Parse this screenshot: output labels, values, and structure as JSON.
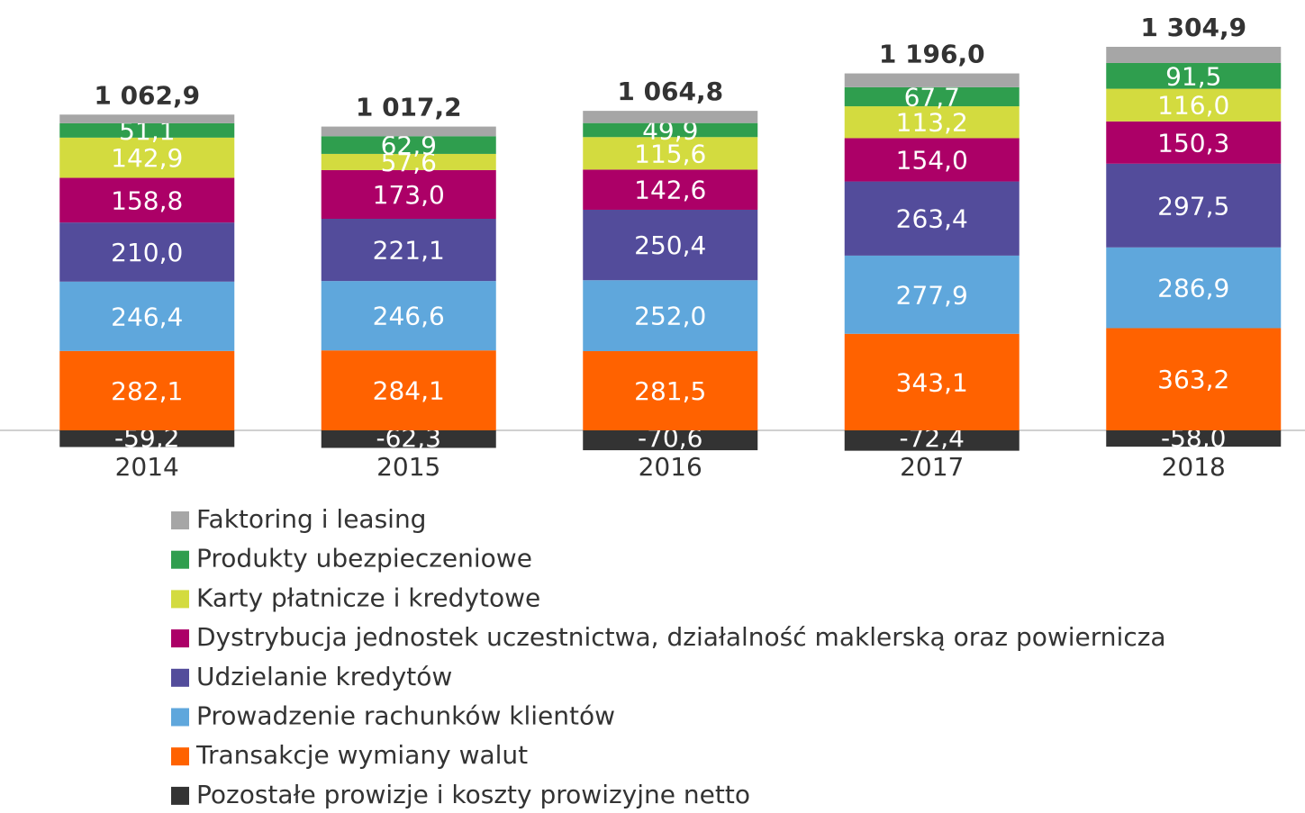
{
  "chart_data": {
    "type": "stacked-bar",
    "categories": [
      "2014",
      "2015",
      "2016",
      "2017",
      "2018"
    ],
    "series": [
      {
        "name": "Pozostałe prowizje i koszty prowizyjne netto",
        "color": "#333333",
        "values": [
          -59.2,
          -62.3,
          -70.6,
          -72.4,
          -58.0
        ],
        "value_labels": [
          "-59,2",
          "-62,3",
          "-70,6",
          "-72,4",
          "-58,0"
        ]
      },
      {
        "name": "Transakcje wymiany walut",
        "color": "#ff6200",
        "values": [
          282.1,
          284.1,
          281.5,
          343.1,
          363.2
        ],
        "value_labels": [
          "282,1",
          "284,1",
          "281,5",
          "343,1",
          "363,2"
        ]
      },
      {
        "name": "Prowadzenie rachunków klientów",
        "color": "#5fa7dc",
        "values": [
          246.4,
          246.6,
          252.0,
          277.9,
          286.9
        ],
        "value_labels": [
          "246,4",
          "246,6",
          "252,0",
          "277,9",
          "286,9"
        ]
      },
      {
        "name": "Udzielanie kredytów",
        "color": "#534c9b",
        "values": [
          210.0,
          221.1,
          250.4,
          263.4,
          297.5
        ],
        "value_labels": [
          "210,0",
          "221,1",
          "250,4",
          "263,4",
          "297,5"
        ]
      },
      {
        "name": "Dystrybucja jednostek uczestnictwa, działalność maklerską oraz powiernicza",
        "color": "#ac0067",
        "values": [
          158.8,
          173.0,
          142.6,
          154.0,
          150.3
        ],
        "value_labels": [
          "158,8",
          "173,0",
          "142,6",
          "154,0",
          "150,3"
        ]
      },
      {
        "name": "Karty płatnicze i kredytowe",
        "color": "#d3db3f",
        "values": [
          142.9,
          57.6,
          115.6,
          113.2,
          116.0
        ],
        "value_labels": [
          "142,9",
          "57,6",
          "115,6",
          "113,2",
          "116,0"
        ]
      },
      {
        "name": "Produkty ubezpieczeniowe",
        "color": "#2f9e4e",
        "values": [
          51.1,
          62.9,
          49.9,
          67.7,
          91.5
        ],
        "value_labels": [
          "51,1",
          "62,9",
          "49,9",
          "67,7",
          "91,5"
        ]
      },
      {
        "name": "Faktoring i leasing",
        "color": "#a6a6a6",
        "values": [
          30.8,
          34.2,
          43.4,
          49.1,
          57.5
        ]
      }
    ],
    "totals": [
      {
        "value": 1062.9,
        "label": "1 062,9"
      },
      {
        "value": 1017.2,
        "label": "1 017,2"
      },
      {
        "value": 1064.8,
        "label": "1 064,8"
      },
      {
        "value": 1196.0,
        "label": "1 196,0"
      },
      {
        "value": 1304.9,
        "label": "1 304,9"
      }
    ]
  }
}
